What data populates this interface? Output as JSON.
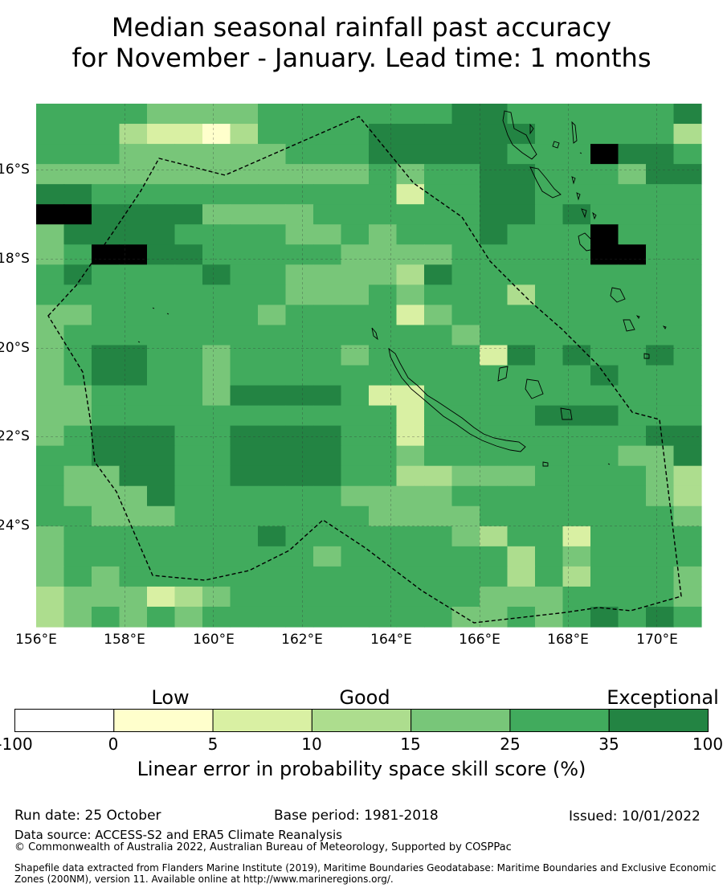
{
  "title": {
    "line1": "Median seasonal rainfall past accuracy",
    "line2": "for November - January. Lead time: 1 months"
  },
  "map": {
    "lon_labels": [
      "156°E",
      "158°E",
      "160°E",
      "162°E",
      "164°E",
      "166°E",
      "168°E",
      "170°E"
    ],
    "lat_labels": [
      "16°S",
      "18°S",
      "20°S",
      "22°S",
      "24°S"
    ],
    "grid_rows": [
      "555544445555555665555556",
      "555322135555666666555553",
      "555444444555666665557665",
      "444444444444545566555466",
      "665555555555525566555555",
      "776666444455555566565555",
      "466665555445455565557555",
      "457766555554444555557755",
      "565555655444436555555555",
      "555555555444545553555555",
      "445555554555524555555555",
      "455555555555555455555555",
      "456655455554555526565565",
      "456655455555555555556555",
      "445555466665225555555555",
      "445555555555525555666555",
      "456665566665525555555566",
      "556665566665545555555446",
      "544665566665533444555543",
      "544465555554444555555543",
      "554445555555444455555554",
      "455555556555555435525555",
      "455555555545555553545555",
      "454555555555555553535554",
      "344423455555555544455554",
      "345454555555555445456565"
    ],
    "palette": [
      "#ffffff",
      "#ffffcc",
      "#d9f0a3",
      "#addd8e",
      "#78c679",
      "#41ab5d",
      "#238443"
    ]
  },
  "colorbar": {
    "categories": [
      "Low",
      "Good",
      "Exceptional"
    ],
    "ticks": [
      "-100",
      "0",
      "5",
      "10",
      "15",
      "25",
      "35",
      "100"
    ],
    "colors": [
      "#ffffff",
      "#ffffcc",
      "#d9f0a3",
      "#addd8e",
      "#78c679",
      "#41ab5d",
      "#238443"
    ],
    "label": "Linear error in probability space skill score (%)"
  },
  "footer": {
    "run_date": "Run date: 25 October",
    "base_period": "Base period: 1981-2018",
    "issued": "Issued: 10/01/2022",
    "data_source": "Data source: ACCESS-S2 and ERA5 Climate Reanalysis",
    "copyright": "© Commonwealth of Australia 2022, Australian Bureau of Meteorology, Supported by COSPPac",
    "shapefile": "Shapefile data extracted from Flanders Marine Institute (2019), Maritime Boundaries Geodatabase: Maritime Boundaries and Exclusive Economic Zones (200NM), version 11. Available online at http://www.marineregions.org/."
  }
}
